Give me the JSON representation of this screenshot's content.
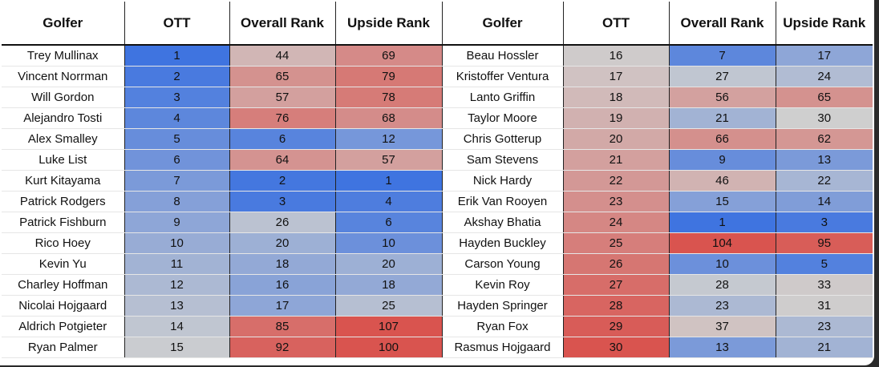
{
  "headers": [
    "Golfer",
    "OTT",
    "Overall Rank",
    "Upside Rank",
    "Golfer",
    "OTT",
    "Overall Rank",
    "Upside Rank"
  ],
  "rows_left": [
    {
      "golfer": "Trey Mullinax",
      "ott": "1",
      "overall": "44",
      "upside": "69"
    },
    {
      "golfer": "Vincent Norrman",
      "ott": "2",
      "overall": "65",
      "upside": "79"
    },
    {
      "golfer": "Will Gordon",
      "ott": "3",
      "overall": "57",
      "upside": "78"
    },
    {
      "golfer": "Alejandro Tosti",
      "ott": "4",
      "overall": "76",
      "upside": "68"
    },
    {
      "golfer": "Alex Smalley",
      "ott": "5",
      "overall": "6",
      "upside": "12"
    },
    {
      "golfer": "Luke List",
      "ott": "6",
      "overall": "64",
      "upside": "57"
    },
    {
      "golfer": "Kurt Kitayama",
      "ott": "7",
      "overall": "2",
      "upside": "1"
    },
    {
      "golfer": "Patrick Rodgers",
      "ott": "8",
      "overall": "3",
      "upside": "4"
    },
    {
      "golfer": "Patrick Fishburn",
      "ott": "9",
      "overall": "26",
      "upside": "6"
    },
    {
      "golfer": "Rico Hoey",
      "ott": "10",
      "overall": "20",
      "upside": "10"
    },
    {
      "golfer": "Kevin Yu",
      "ott": "11",
      "overall": "18",
      "upside": "20"
    },
    {
      "golfer": "Charley Hoffman",
      "ott": "12",
      "overall": "16",
      "upside": "18"
    },
    {
      "golfer": "Nicolai Hojgaard",
      "ott": "13",
      "overall": "17",
      "upside": "25"
    },
    {
      "golfer": "Aldrich Potgieter",
      "ott": "14",
      "overall": "85",
      "upside": "107"
    },
    {
      "golfer": "Ryan Palmer",
      "ott": "15",
      "overall": "92",
      "upside": "100"
    }
  ],
  "rows_right": [
    {
      "golfer": "Beau Hossler",
      "ott": "16",
      "overall": "7",
      "upside": "17"
    },
    {
      "golfer": "Kristoffer Ventura",
      "ott": "17",
      "overall": "27",
      "upside": "24"
    },
    {
      "golfer": "Lanto Griffin",
      "ott": "18",
      "overall": "56",
      "upside": "65"
    },
    {
      "golfer": "Taylor Moore",
      "ott": "19",
      "overall": "21",
      "upside": "30"
    },
    {
      "golfer": "Chris Gotterup",
      "ott": "20",
      "overall": "66",
      "upside": "62"
    },
    {
      "golfer": "Sam Stevens",
      "ott": "21",
      "overall": "9",
      "upside": "13"
    },
    {
      "golfer": "Nick Hardy",
      "ott": "22",
      "overall": "46",
      "upside": "22"
    },
    {
      "golfer": "Erik Van Rooyen",
      "ott": "23",
      "overall": "15",
      "upside": "14"
    },
    {
      "golfer": "Akshay Bhatia",
      "ott": "24",
      "overall": "1",
      "upside": "3"
    },
    {
      "golfer": "Hayden Buckley",
      "ott": "25",
      "overall": "104",
      "upside": "95"
    },
    {
      "golfer": "Carson Young",
      "ott": "26",
      "overall": "10",
      "upside": "5"
    },
    {
      "golfer": "Kevin Roy",
      "ott": "27",
      "overall": "28",
      "upside": "33"
    },
    {
      "golfer": "Hayden Springer",
      "ott": "28",
      "overall": "23",
      "upside": "31"
    },
    {
      "golfer": "Ryan Fox",
      "ott": "29",
      "overall": "37",
      "upside": "23"
    },
    {
      "golfer": "Rasmus Hojgaard",
      "ott": "30",
      "overall": "13",
      "upside": "21"
    }
  ],
  "heatmap_colors": {
    "low": "#3f74e0",
    "mid": "#cfcfcf",
    "high": "#d9544f"
  }
}
